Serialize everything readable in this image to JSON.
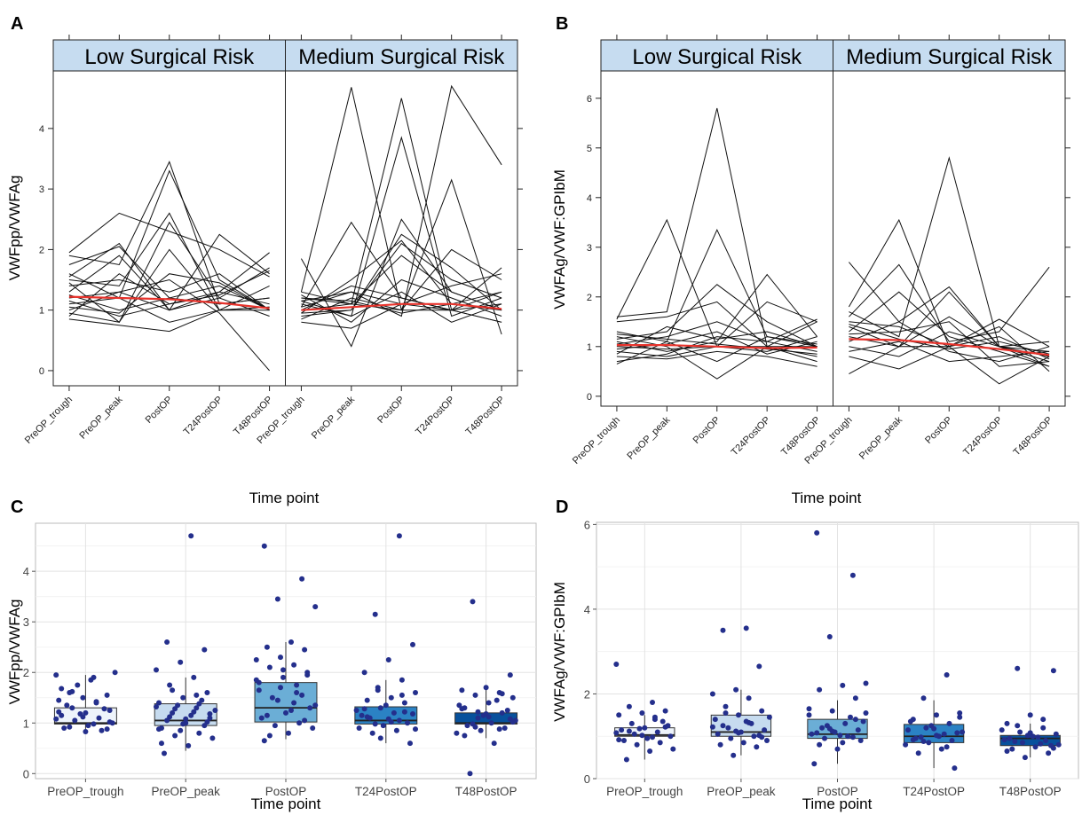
{
  "chart_data": [
    {
      "type": "line",
      "panel_letter": "A",
      "ylabel": "VWFpp/VWFAg",
      "xlabel": "Time point",
      "categories": [
        "PreOP_trough",
        "PreOP_peak",
        "PostOP",
        "T24PostOP",
        "T48PostOP"
      ],
      "ylim": [
        -0.25,
        4.95
      ],
      "yticks": [
        0,
        1,
        2,
        3,
        4
      ],
      "strip_color": "#c6dcf0",
      "mean_line_color": "#e8332c",
      "panels": [
        {
          "strip_label": "Low Surgical Risk",
          "mean": [
            1.22,
            1.2,
            1.18,
            1.12,
            1.03
          ],
          "subjects": [
            [
              1.95,
              2.6,
              2.3,
              2.0,
              1.55
            ],
            [
              1.9,
              1.75,
              3.45,
              1.1,
              1.2
            ],
            [
              1.6,
              1.2,
              3.3,
              1.5,
              1.0
            ],
            [
              1.55,
              2.1,
              1.0,
              2.25,
              1.6
            ],
            [
              1.5,
              1.4,
              2.6,
              1.0,
              1.05
            ],
            [
              1.45,
              0.8,
              2.45,
              1.2,
              1.7
            ],
            [
              1.4,
              1.5,
              1.3,
              1.6,
              1.0
            ],
            [
              1.3,
              1.9,
              1.0,
              1.3,
              1.95
            ],
            [
              1.25,
              1.0,
              1.2,
              1.1,
              1.2
            ],
            [
              1.2,
              1.3,
              1.5,
              0.95,
              0.0
            ],
            [
              1.15,
              0.9,
              1.1,
              1.3,
              1.1
            ],
            [
              1.1,
              1.2,
              0.8,
              1.0,
              1.4
            ],
            [
              1.05,
              0.95,
              1.6,
              1.45,
              1.0
            ],
            [
              1.0,
              1.3,
              1.0,
              1.2,
              0.9
            ],
            [
              0.95,
              0.8,
              2.0,
              1.0,
              1.0
            ],
            [
              0.9,
              1.6,
              1.1,
              1.25,
              1.65
            ],
            [
              0.85,
              0.75,
              0.65,
              1.0,
              1.05
            ],
            [
              1.75,
              2.05,
              1.2,
              1.4,
              1.0
            ]
          ]
        },
        {
          "strip_label": "Medium Surgical Risk",
          "mean": [
            1.0,
            1.05,
            1.1,
            1.1,
            1.02
          ],
          "subjects": [
            [
              1.85,
              0.4,
              2.5,
              1.3,
              1.0
            ],
            [
              1.3,
              4.68,
              1.0,
              1.0,
              0.8
            ],
            [
              1.2,
              1.1,
              4.5,
              1.0,
              1.1
            ],
            [
              1.15,
              1.3,
              0.9,
              4.7,
              3.4
            ],
            [
              1.1,
              0.9,
              3.85,
              0.9,
              1.2
            ],
            [
              1.05,
              2.45,
              1.2,
              1.0,
              1.3
            ],
            [
              1.0,
              1.1,
              1.0,
              3.15,
              0.6
            ],
            [
              0.95,
              1.5,
              2.15,
              1.1,
              1.0
            ],
            [
              0.9,
              1.0,
              2.1,
              1.5,
              1.2
            ],
            [
              1.25,
              0.8,
              1.5,
              1.2,
              0.9
            ],
            [
              0.85,
              1.2,
              1.0,
              2.0,
              1.5
            ],
            [
              1.0,
              1.4,
              1.2,
              1.0,
              1.7
            ],
            [
              1.3,
              1.1,
              1.9,
              1.3,
              1.0
            ],
            [
              0.8,
              0.7,
              1.1,
              1.0,
              0.8
            ],
            [
              1.05,
              1.3,
              1.1,
              1.4,
              1.6
            ],
            [
              1.15,
              0.9,
              1.3,
              0.8,
              1.1
            ],
            [
              0.95,
              1.0,
              2.25,
              1.7,
              1.0
            ],
            [
              1.2,
              1.15,
              0.95,
              1.1,
              1.3
            ]
          ]
        }
      ]
    },
    {
      "type": "line",
      "panel_letter": "B",
      "ylabel": "VWFAg/VWF:GPIbM",
      "xlabel": "Time point",
      "categories": [
        "PreOP_trough",
        "PreOP_peak",
        "PostOP",
        "T24PostOP",
        "T48PostOP"
      ],
      "ylim": [
        -0.2,
        6.55
      ],
      "yticks": [
        0,
        1,
        2,
        3,
        4,
        5,
        6
      ],
      "strip_color": "#c6dcf0",
      "mean_line_color": "#e8332c",
      "panels": [
        {
          "strip_label": "Low Surgical Risk",
          "mean": [
            1.03,
            1.03,
            1.0,
            0.97,
            0.98
          ],
          "subjects": [
            [
              1.6,
              1.7,
              5.8,
              1.0,
              1.5
            ],
            [
              1.55,
              3.55,
              1.0,
              0.9,
              1.2
            ],
            [
              1.3,
              1.1,
              3.35,
              1.2,
              1.0
            ],
            [
              1.2,
              1.0,
              0.35,
              1.0,
              0.8
            ],
            [
              1.15,
              1.3,
              2.25,
              1.5,
              1.0
            ],
            [
              1.1,
              0.9,
              1.1,
              2.45,
              1.2
            ],
            [
              1.05,
              1.2,
              1.5,
              1.1,
              0.9
            ],
            [
              1.0,
              0.95,
              1.0,
              1.9,
              1.5
            ],
            [
              0.95,
              1.05,
              1.3,
              0.85,
              1.1
            ],
            [
              0.9,
              0.8,
              1.0,
              1.0,
              0.7
            ],
            [
              0.85,
              1.4,
              1.15,
              1.3,
              1.0
            ],
            [
              0.8,
              0.75,
              0.9,
              0.8,
              0.6
            ],
            [
              0.7,
              0.85,
              1.2,
              1.1,
              1.55
            ],
            [
              0.65,
              1.1,
              0.7,
              1.2,
              1.05
            ],
            [
              1.5,
              1.6,
              1.9,
              1.0,
              1.0
            ],
            [
              1.25,
              1.15,
              1.05,
              0.95,
              0.85
            ]
          ]
        },
        {
          "strip_label": "Medium Surgical Risk",
          "mean": [
            1.15,
            1.13,
            1.05,
            0.95,
            0.83
          ],
          "subjects": [
            [
              2.7,
              1.5,
              2.2,
              1.0,
              0.7
            ],
            [
              1.8,
              3.55,
              1.0,
              1.55,
              1.0
            ],
            [
              1.7,
              1.2,
              4.8,
              1.0,
              0.9
            ],
            [
              1.6,
              2.65,
              1.1,
              1.3,
              2.6
            ],
            [
              1.5,
              1.4,
              1.0,
              0.25,
              0.8
            ],
            [
              1.4,
              1.0,
              2.1,
              1.0,
              1.1
            ],
            [
              1.3,
              2.1,
              1.2,
              0.9,
              0.6
            ],
            [
              1.2,
              1.0,
              1.0,
              1.2,
              0.75
            ],
            [
              1.1,
              1.5,
              0.9,
              0.7,
              1.0
            ],
            [
              1.0,
              0.8,
              1.3,
              1.0,
              0.6
            ],
            [
              0.9,
              1.1,
              0.7,
              0.8,
              0.9
            ],
            [
              0.8,
              0.55,
              1.0,
              1.4,
              0.5
            ],
            [
              0.45,
              1.0,
              1.6,
              1.0,
              0.8
            ],
            [
              1.25,
              1.3,
              1.5,
              0.6,
              0.7
            ],
            [
              1.45,
              1.15,
              0.95,
              1.1,
              0.85
            ]
          ]
        }
      ]
    },
    {
      "type": "box",
      "panel_letter": "C",
      "ylabel": "VWFpp/VWFAg",
      "xlabel": "Time point",
      "categories": [
        "PreOP_trough",
        "PreOP_peak",
        "PostOP",
        "T24PostOP",
        "T48PostOP"
      ],
      "ylim": [
        -0.1,
        4.95
      ],
      "yticks": [
        0,
        1,
        2,
        3,
        4
      ],
      "box_colors": [
        "#eef4fb",
        "#c6dbef",
        "#6baed6",
        "#2b82c4",
        "#08519c"
      ],
      "point_color": "#242f8c",
      "boxes": [
        {
          "q1": 0.98,
          "median": 1.0,
          "q3": 1.3,
          "whisker_low": 0.8,
          "whisker_high": 1.95
        },
        {
          "q1": 0.95,
          "median": 1.05,
          "q3": 1.38,
          "whisker_low": 0.45,
          "whisker_high": 1.9
        },
        {
          "q1": 1.02,
          "median": 1.3,
          "q3": 1.8,
          "whisker_low": 0.68,
          "whisker_high": 2.6
        },
        {
          "q1": 0.98,
          "median": 1.05,
          "q3": 1.32,
          "whisker_low": 0.6,
          "whisker_high": 1.85
        },
        {
          "q1": 0.98,
          "median": 1.0,
          "q3": 1.2,
          "whisker_low": 0.7,
          "whisker_high": 1.7
        }
      ],
      "points": [
        [
          1.95,
          1.9,
          1.6,
          1.55,
          1.5,
          1.45,
          1.4,
          1.3,
          1.25,
          1.2,
          1.15,
          1.1,
          1.05,
          1.0,
          0.95,
          0.9,
          0.85,
          1.75,
          2.0,
          1.85,
          1.35,
          1.28,
          1.18,
          1.08,
          0.98,
          0.92,
          0.88,
          1.12,
          1.22,
          1.42,
          1.62,
          1.02,
          0.83,
          1.68
        ],
        [
          4.7,
          2.6,
          2.45,
          2.2,
          2.05,
          1.9,
          1.75,
          1.6,
          1.5,
          1.4,
          1.3,
          1.2,
          1.1,
          1.0,
          0.9,
          0.8,
          0.75,
          0.7,
          0.55,
          0.4,
          1.45,
          1.35,
          1.25,
          1.15,
          1.05,
          0.95,
          0.85,
          1.32,
          1.22,
          1.12,
          1.02,
          0.98,
          0.88,
          1.55,
          1.65,
          1.18,
          1.08,
          0.6,
          1.38,
          1.28
        ],
        [
          4.5,
          3.85,
          3.45,
          3.3,
          2.6,
          2.5,
          2.45,
          2.3,
          2.25,
          2.15,
          2.1,
          2.0,
          1.9,
          1.8,
          1.6,
          1.5,
          1.3,
          1.2,
          1.1,
          1.0,
          0.95,
          0.9,
          0.8,
          0.65,
          1.55,
          1.45,
          1.35,
          1.25,
          1.15,
          1.05,
          1.7,
          1.85,
          1.4,
          0.75,
          1.95,
          2.05,
          1.65,
          1.75
        ],
        [
          4.7,
          3.15,
          2.55,
          2.25,
          2.0,
          1.85,
          1.7,
          1.6,
          1.5,
          1.45,
          1.4,
          1.3,
          1.25,
          1.2,
          1.1,
          1.0,
          0.95,
          0.9,
          0.85,
          0.8,
          0.6,
          1.35,
          1.15,
          1.05,
          0.98,
          1.18,
          1.08,
          1.28,
          1.55,
          1.65,
          0.88,
          1.02,
          1.12,
          1.22,
          0.7
        ],
        [
          3.4,
          1.95,
          1.7,
          1.65,
          1.6,
          1.55,
          1.5,
          1.4,
          1.3,
          1.2,
          1.1,
          1.05,
          1.0,
          0.95,
          0.9,
          0.85,
          0.8,
          0.6,
          0.0,
          1.25,
          1.15,
          1.35,
          1.45,
          0.98,
          1.08,
          1.18,
          1.28,
          0.88,
          0.92,
          1.02,
          1.12,
          0.75,
          1.58,
          1.22
        ]
      ]
    },
    {
      "type": "box",
      "panel_letter": "D",
      "ylabel": "VWFAg/VWF:GPIbM",
      "xlabel": "Time point",
      "categories": [
        "PreOP_trough",
        "PreOP_peak",
        "PostOP",
        "T24PostOP",
        "T48PostOP"
      ],
      "ylim": [
        0,
        6.05
      ],
      "yticks": [
        0,
        2,
        4,
        6
      ],
      "box_colors": [
        "#eef4fb",
        "#c6dbef",
        "#6baed6",
        "#2b82c4",
        "#08519c"
      ],
      "point_color": "#242f8c",
      "boxes": [
        {
          "q1": 1.0,
          "median": 1.03,
          "q3": 1.2,
          "whisker_low": 0.45,
          "whisker_high": 1.5
        },
        {
          "q1": 1.0,
          "median": 1.1,
          "q3": 1.5,
          "whisker_low": 0.55,
          "whisker_high": 2.1
        },
        {
          "q1": 0.95,
          "median": 1.05,
          "q3": 1.4,
          "whisker_low": 0.35,
          "whisker_high": 1.85
        },
        {
          "q1": 0.85,
          "median": 1.0,
          "q3": 1.28,
          "whisker_low": 0.25,
          "whisker_high": 1.85
        },
        {
          "q1": 0.78,
          "median": 0.95,
          "q3": 1.02,
          "whisker_low": 0.5,
          "whisker_high": 1.3
        }
      ],
      "points": [
        [
          2.7,
          1.8,
          1.7,
          1.6,
          1.55,
          1.5,
          1.4,
          1.3,
          1.25,
          1.2,
          1.15,
          1.1,
          1.05,
          1.0,
          0.95,
          0.9,
          0.85,
          0.8,
          0.7,
          0.65,
          0.45,
          1.35,
          1.18,
          1.08,
          0.98,
          1.12,
          1.22,
          1.02,
          0.92,
          1.45
        ],
        [
          3.55,
          3.5,
          2.65,
          2.1,
          2.0,
          1.9,
          1.7,
          1.6,
          1.5,
          1.4,
          1.3,
          1.2,
          1.15,
          1.1,
          1.05,
          1.0,
          0.95,
          0.9,
          0.85,
          0.8,
          0.75,
          0.55,
          1.45,
          1.35,
          1.25,
          1.02,
          1.12,
          1.22,
          1.32,
          1.55,
          0.98,
          1.08
        ],
        [
          5.8,
          4.8,
          3.35,
          2.25,
          2.2,
          2.1,
          1.9,
          1.6,
          1.5,
          1.3,
          1.2,
          1.15,
          1.1,
          1.05,
          1.0,
          0.95,
          0.9,
          0.7,
          0.35,
          1.45,
          1.25,
          1.35,
          1.02,
          1.08,
          0.98,
          1.18,
          1.55,
          0.85,
          0.8,
          1.4,
          1.12,
          1.65
        ],
        [
          2.45,
          1.9,
          1.55,
          1.5,
          1.4,
          1.3,
          1.2,
          1.1,
          1.0,
          0.95,
          0.9,
          0.85,
          0.8,
          0.7,
          0.6,
          0.25,
          1.25,
          1.15,
          1.05,
          0.98,
          1.08,
          1.18,
          1.35,
          0.75,
          0.88,
          1.45,
          1.02,
          0.92
        ],
        [
          2.6,
          2.55,
          1.5,
          1.3,
          1.2,
          1.1,
          1.05,
          1.0,
          0.95,
          0.9,
          0.85,
          0.8,
          0.75,
          0.7,
          0.6,
          0.5,
          1.15,
          0.98,
          0.88,
          0.78,
          1.02,
          0.92,
          0.82,
          1.25,
          0.72,
          1.08,
          0.65,
          1.4
        ]
      ]
    }
  ]
}
